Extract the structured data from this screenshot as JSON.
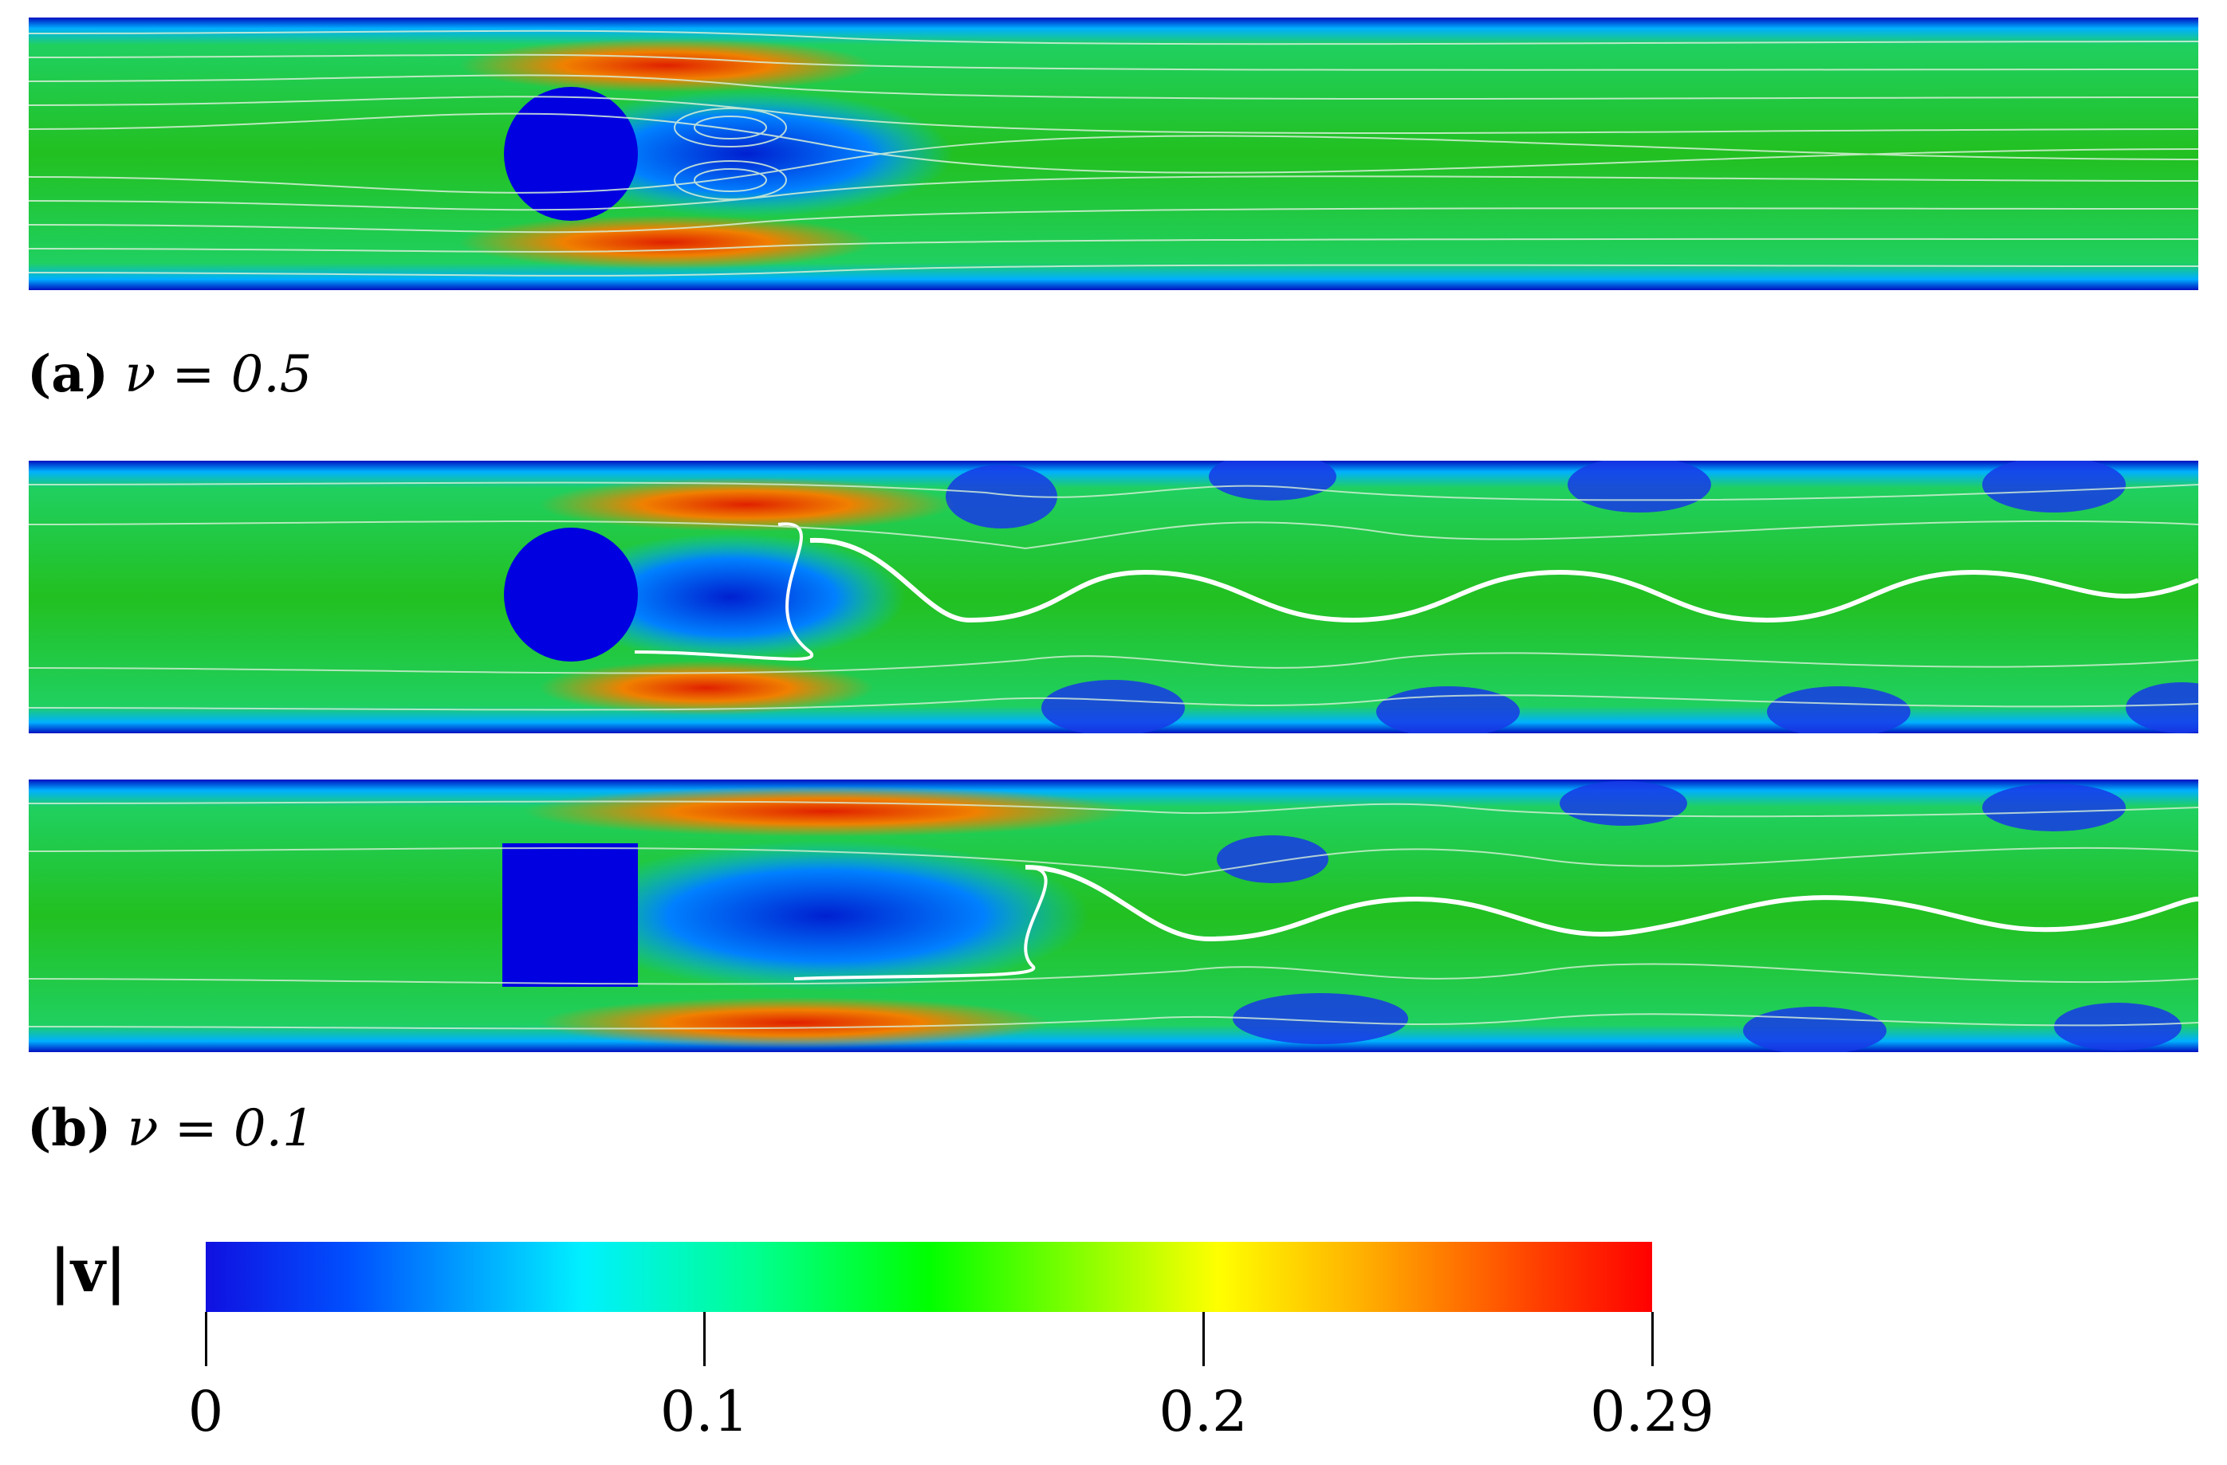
{
  "captions": {
    "a": {
      "tag": "(a)",
      "math": "ν = 0.5"
    },
    "b": {
      "tag": "(b)",
      "math": "ν = 0.1"
    }
  },
  "colorbar": {
    "label": "|v|",
    "min": 0,
    "max": 0.29,
    "ticks": [
      {
        "value": 0,
        "label": "0"
      },
      {
        "value": 0.1,
        "label": "0.1"
      },
      {
        "value": 0.2,
        "label": "0.2"
      },
      {
        "value": 0.29,
        "label": "0.29"
      }
    ],
    "colormap": [
      "#1010e0",
      "#00a0ff",
      "#00f0ff",
      "#00ff00",
      "#ffff00",
      "#ff0000"
    ]
  },
  "panels": [
    {
      "obstacle": "circle",
      "wake": "steady"
    },
    {
      "obstacle": "circle",
      "wake": "vortex-street"
    },
    {
      "obstacle": "square",
      "wake": "vortex-street"
    }
  ]
}
